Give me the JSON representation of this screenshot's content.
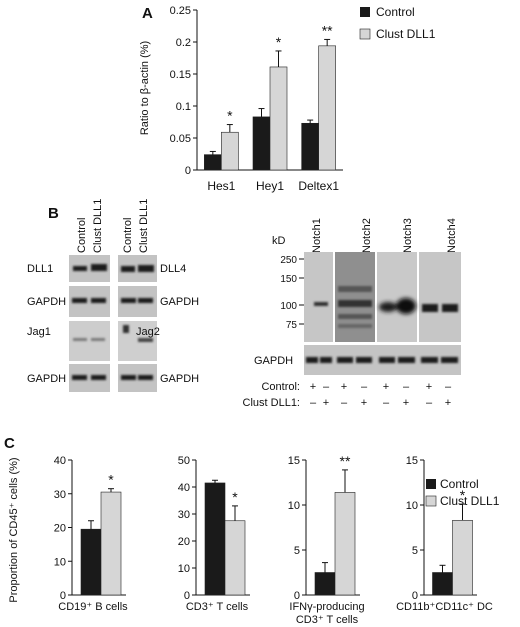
{
  "panels": {
    "A": "A",
    "B": "B",
    "C": "C"
  },
  "legend": {
    "control": "Control",
    "clust_dll1": "Clust DLL1"
  },
  "colors": {
    "control": "#1a1a1a",
    "clust": "#d6d6d6",
    "blot_bg": "#c2c2c2",
    "band": "#1e1e1e"
  },
  "panel_a_chart": {
    "type": "bar",
    "ylabel": "Ratio to β-actin (%)",
    "categories": [
      "Hes1",
      "Hey1",
      "Deltex1"
    ],
    "ylim": [
      0,
      0.25
    ],
    "ticks": [
      "0",
      "0.05",
      "0.1",
      "0.15",
      "0.2",
      "0.25"
    ],
    "tick_values": [
      0,
      0.05,
      0.1,
      0.15,
      0.2,
      0.25
    ],
    "series": [
      {
        "name": "Control",
        "values": [
          0.024,
          0.083,
          0.073
        ],
        "errors": [
          0.005,
          0.013,
          0.005
        ]
      },
      {
        "name": "Clust DLL1",
        "values": [
          0.059,
          0.161,
          0.194
        ],
        "errors": [
          0.012,
          0.025,
          0.01
        ]
      }
    ],
    "significance": [
      "*",
      "*",
      "**"
    ]
  },
  "chart_data": [
    {
      "type": "bar",
      "title": "",
      "ylabel": "Proportion of CD45⁺ cells (%)",
      "categories": [
        "CD19⁺ B cells"
      ],
      "caption_lines": [
        "CD19⁺ B cells"
      ],
      "ylim": [
        0,
        40
      ],
      "ticks": [
        "0",
        "10",
        "20",
        "30",
        "40"
      ],
      "tick_values": [
        0,
        10,
        20,
        30,
        40
      ],
      "series": [
        {
          "name": "Control",
          "values": [
            19.5
          ],
          "errors": [
            2.5
          ]
        },
        {
          "name": "Clust DLL1",
          "values": [
            30.5
          ],
          "errors": [
            1.0
          ]
        }
      ],
      "significance": "*"
    },
    {
      "type": "bar",
      "title": "",
      "categories": [
        "CD3⁺ T cells"
      ],
      "caption_lines": [
        "CD3⁺ T cells"
      ],
      "ylim": [
        0,
        50
      ],
      "ticks": [
        "0",
        "10",
        "20",
        "30",
        "40",
        "50"
      ],
      "tick_values": [
        0,
        10,
        20,
        30,
        40,
        50
      ],
      "series": [
        {
          "name": "Control",
          "values": [
            41.5
          ],
          "errors": [
            1.0
          ]
        },
        {
          "name": "Clust DLL1",
          "values": [
            27.5
          ],
          "errors": [
            5.5
          ]
        }
      ],
      "significance": "*"
    },
    {
      "type": "bar",
      "title": "",
      "categories": [
        "IFNγ-producing CD3⁺ T cells"
      ],
      "caption_lines": [
        "IFNγ-producing",
        "CD3⁺ T cells"
      ],
      "ylim": [
        0,
        15
      ],
      "ticks": [
        "0",
        "5",
        "10",
        "15"
      ],
      "tick_values": [
        0,
        5,
        10,
        15
      ],
      "series": [
        {
          "name": "Control",
          "values": [
            2.5
          ],
          "errors": [
            1.1
          ]
        },
        {
          "name": "Clust DLL1",
          "values": [
            11.4
          ],
          "errors": [
            2.5
          ]
        }
      ],
      "significance": "**"
    },
    {
      "type": "bar",
      "title": "",
      "categories": [
        "CD11b⁺CD11c⁺ DC"
      ],
      "caption_lines": [
        "CD11b⁺CD11c⁺ DC"
      ],
      "ylim": [
        0,
        15
      ],
      "ticks": [
        "0",
        "5",
        "10",
        "15"
      ],
      "tick_values": [
        0,
        5,
        10,
        15
      ],
      "series": [
        {
          "name": "Control",
          "values": [
            2.5
          ],
          "errors": [
            0.8
          ]
        },
        {
          "name": "Clust DLL1",
          "values": [
            8.3
          ],
          "errors": [
            1.8
          ]
        }
      ],
      "significance": "*"
    }
  ],
  "blots_left": {
    "column_labels": [
      "Control",
      "Clust DLL1"
    ],
    "left_labels": [
      "DLL1",
      "GAPDH",
      "Jag1",
      "GAPDH"
    ],
    "right_labels": [
      "DLL4",
      "GAPDH",
      "Jag2",
      "GAPDH"
    ]
  },
  "blots_right": {
    "kd_label": "kD",
    "markers": [
      "250",
      "150",
      "100",
      "75"
    ],
    "marker_values": [
      250,
      150,
      100,
      75
    ],
    "columns": [
      "Notch1",
      "Notch2",
      "Notch3",
      "Notch4"
    ],
    "gapdh_label": "GAPDH",
    "row_labels": [
      "Control:",
      "Clust DLL1:"
    ],
    "control_signs": [
      "+",
      "–",
      "+",
      "–",
      "+",
      "–",
      "+",
      "–"
    ],
    "clust_signs": [
      "–",
      "+",
      "–",
      "+",
      "–",
      "+",
      "–",
      "+"
    ]
  }
}
